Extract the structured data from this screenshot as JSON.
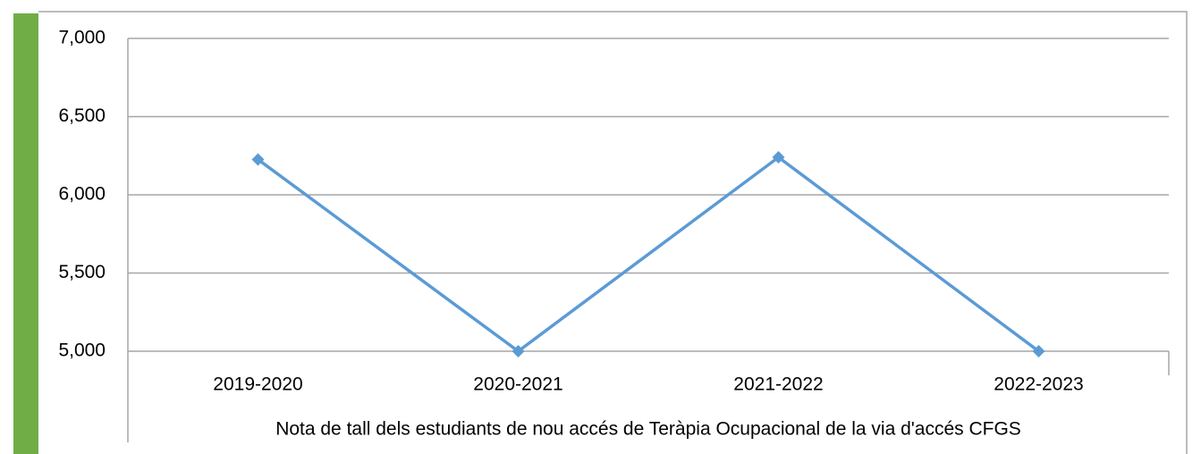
{
  "chart_data": {
    "type": "line",
    "x_label": "Nota de tall dels estudiants de nou accés de Teràpia Ocupacional de la via d'accés CFGS",
    "categories": [
      "2019-2020",
      "2020-2021",
      "2021-2022",
      "2022-2023"
    ],
    "series": [
      {
        "name": null,
        "color": "#5b9bd5",
        "values": [
          6226,
          5000,
          6240,
          5000
        ]
      }
    ],
    "ylim": [
      5000,
      7000
    ],
    "yticks": [
      {
        "value": 5000,
        "label": "5,000"
      },
      {
        "value": 5500,
        "label": "5,500"
      },
      {
        "value": 6000,
        "label": "6,000"
      },
      {
        "value": 6500,
        "label": "6,500"
      },
      {
        "value": 7000,
        "label": "7,000"
      }
    ],
    "grid": true
  }
}
